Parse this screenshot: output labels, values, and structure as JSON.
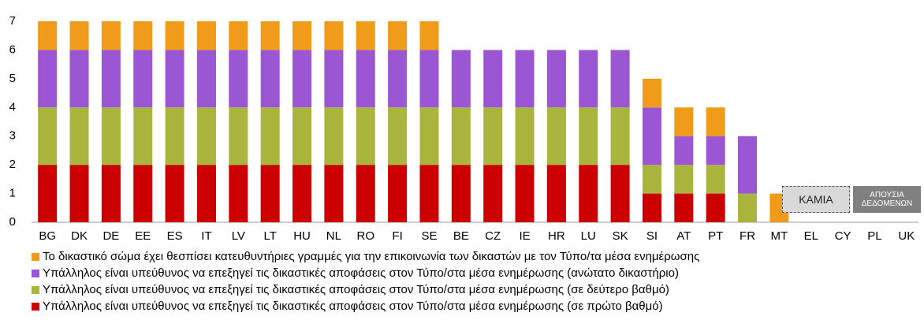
{
  "chart_data": {
    "type": "stacked_bar",
    "categories": [
      "BG",
      "DK",
      "DE",
      "EE",
      "ES",
      "IT",
      "LV",
      "LT",
      "HU",
      "NL",
      "RO",
      "FI",
      "SE",
      "BE",
      "CZ",
      "IE",
      "HR",
      "LU",
      "SK",
      "SI",
      "AT",
      "PT",
      "FR",
      "MT",
      "EL",
      "CY",
      "PL",
      "UK"
    ],
    "series": [
      {
        "name": "Υπάλληλος είναι υπεύθυνος να επεξηγεί τις δικαστικές αποφάσεις στον Τύπο/στα μέσα ενημέρωσης (σε πρώτο βαθμό)",
        "color": "#cc0000",
        "values": [
          2,
          2,
          2,
          2,
          2,
          2,
          2,
          2,
          2,
          2,
          2,
          2,
          2,
          2,
          2,
          2,
          2,
          2,
          2,
          1,
          1,
          1,
          0,
          0,
          0,
          0,
          0,
          0
        ]
      },
      {
        "name": "Υπάλληλος είναι υπεύθυνος να επεξηγεί τις δικαστικές αποφάσεις στον Τύπο/στα μέσα ενημέρωσης (σε δεύτερο βαθμό)",
        "color": "#a9b53c",
        "values": [
          2,
          2,
          2,
          2,
          2,
          2,
          2,
          2,
          2,
          2,
          2,
          2,
          2,
          2,
          2,
          2,
          2,
          2,
          2,
          1,
          1,
          1,
          1,
          0,
          0,
          0,
          0,
          0
        ]
      },
      {
        "name": "Υπάλληλος είναι υπεύθυνος να επεξηγεί τις δικαστικές αποφάσεις στον Τύπο/στα μέσα ενημέρωσης (ανώτατο δικαστήριο)",
        "color": "#9b57d3",
        "values": [
          2,
          2,
          2,
          2,
          2,
          2,
          2,
          2,
          2,
          2,
          2,
          2,
          2,
          2,
          2,
          2,
          2,
          2,
          2,
          2,
          1,
          1,
          2,
          0,
          0,
          0,
          0,
          0
        ]
      },
      {
        "name": "Το δικαστικό σώμα έχει θεσπίσει κατευθυντήριες γραμμές για την επικοινωνία των δικαστών με τον Τύπο/τα μέσα ενημέρωσης",
        "color": "#f09c1a",
        "values": [
          1,
          1,
          1,
          1,
          1,
          1,
          1,
          1,
          1,
          1,
          1,
          1,
          1,
          0,
          0,
          0,
          0,
          0,
          0,
          1,
          1,
          1,
          0,
          1,
          0,
          0,
          0,
          0
        ]
      }
    ],
    "annotations": [
      "ΚΑΜΙΑ",
      "ΑΠΟΥΣΙΑ ΔΕΔΟΜΕΝΩΝ"
    ],
    "ylim": [
      0,
      7
    ],
    "yticks": [
      0,
      1,
      2,
      3,
      4,
      5,
      6,
      7
    ],
    "grid": false
  }
}
